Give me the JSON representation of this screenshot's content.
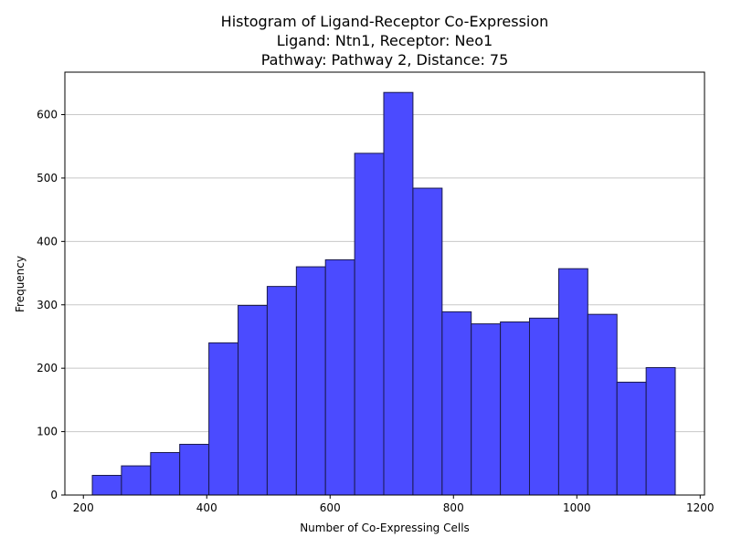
{
  "chart_data": {
    "type": "bar",
    "title": "Histogram of Ligand-Receptor Co-Expression",
    "subtitle_lines": [
      "Ligand: Ntn1, Receptor: Neo1",
      "Pathway: Pathway 2, Distance: 75"
    ],
    "xlabel": "Number of Co-Expressing Cells",
    "ylabel": "Frequency",
    "xlim": [
      170,
      1207
    ],
    "ylim": [
      0,
      667
    ],
    "xticks": [
      200,
      400,
      600,
      800,
      1000,
      1200
    ],
    "yticks": [
      0,
      100,
      200,
      300,
      400,
      500,
      600
    ],
    "grid": "y",
    "bar_color": "#4b4bff",
    "bar_edge_color": "#1a1a4d",
    "bins": [
      {
        "start": 214.5,
        "end": 261.7,
        "value": 31
      },
      {
        "start": 261.7,
        "end": 309.0,
        "value": 46
      },
      {
        "start": 309.0,
        "end": 356.2,
        "value": 67
      },
      {
        "start": 356.2,
        "end": 403.5,
        "value": 80
      },
      {
        "start": 403.5,
        "end": 450.8,
        "value": 240
      },
      {
        "start": 450.8,
        "end": 498.0,
        "value": 299
      },
      {
        "start": 498.0,
        "end": 545.3,
        "value": 329
      },
      {
        "start": 545.3,
        "end": 592.5,
        "value": 360
      },
      {
        "start": 592.5,
        "end": 639.8,
        "value": 371
      },
      {
        "start": 639.8,
        "end": 687.0,
        "value": 539
      },
      {
        "start": 687.0,
        "end": 734.3,
        "value": 635
      },
      {
        "start": 734.3,
        "end": 781.6,
        "value": 484
      },
      {
        "start": 781.6,
        "end": 828.8,
        "value": 289
      },
      {
        "start": 828.8,
        "end": 876.1,
        "value": 270
      },
      {
        "start": 876.1,
        "end": 923.3,
        "value": 273
      },
      {
        "start": 923.3,
        "end": 970.6,
        "value": 279
      },
      {
        "start": 970.6,
        "end": 1017.8,
        "value": 357
      },
      {
        "start": 1017.8,
        "end": 1065.1,
        "value": 285
      },
      {
        "start": 1065.1,
        "end": 1112.4,
        "value": 178
      },
      {
        "start": 1112.4,
        "end": 1159.6,
        "value": 201
      }
    ]
  }
}
